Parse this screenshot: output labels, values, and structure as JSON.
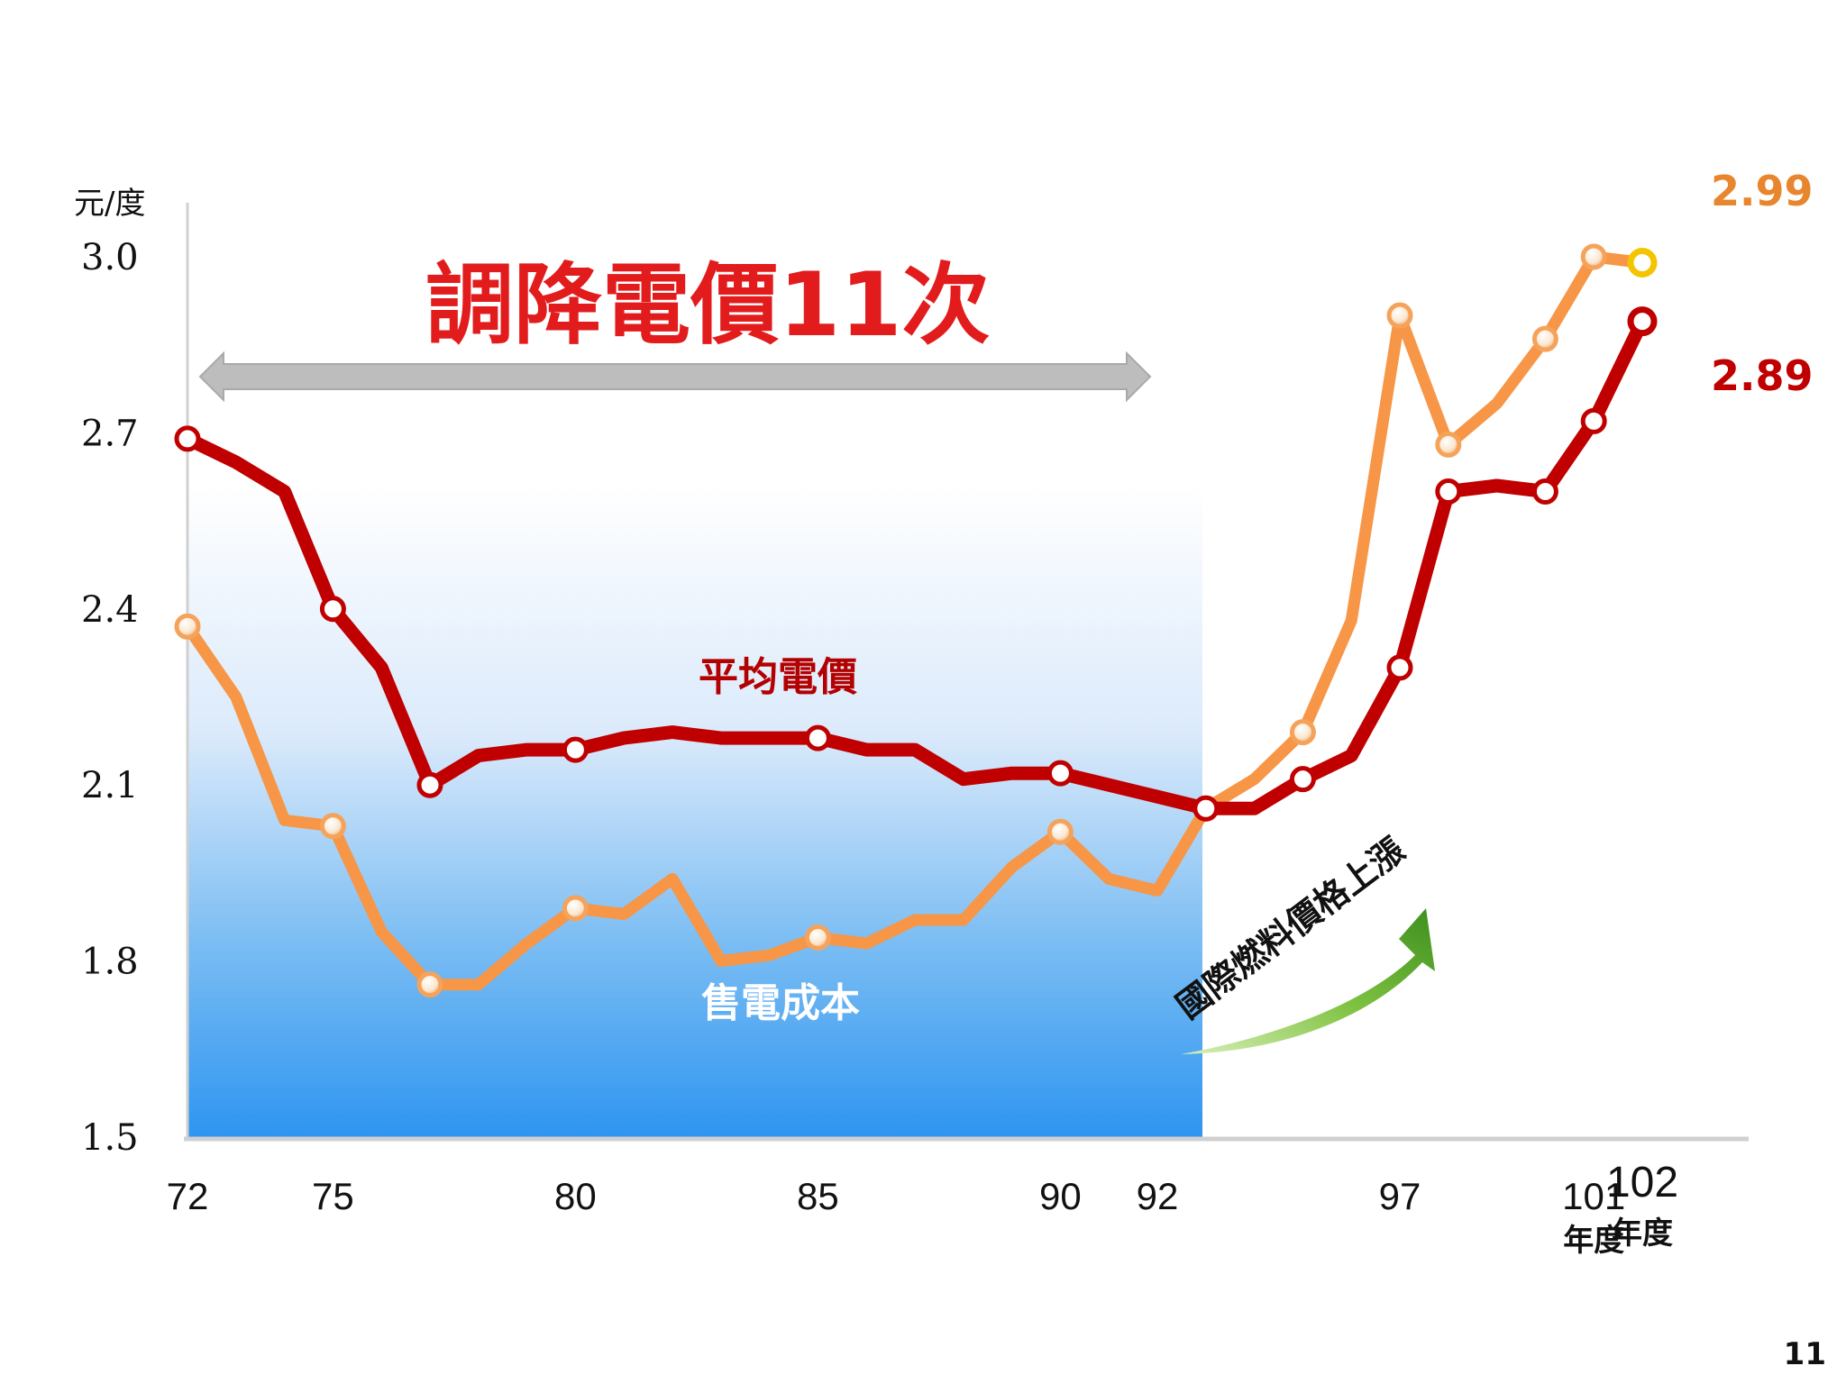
{
  "chart_data": {
    "type": "line",
    "ylabel": "元/度",
    "ylim": [
      1.5,
      3.0
    ],
    "yticks": [
      "3.0",
      "2.7",
      "2.4",
      "2.1",
      "1.8",
      "1.5"
    ],
    "ytick_values": [
      3.0,
      2.7,
      2.4,
      2.1,
      1.8,
      1.5
    ],
    "xlim": [
      72,
      102.5
    ],
    "xticks": [
      {
        "value": 72,
        "label": "72"
      },
      {
        "value": 75,
        "label": "75"
      },
      {
        "value": 80,
        "label": "80"
      },
      {
        "value": 85,
        "label": "85"
      },
      {
        "value": 90,
        "label": "90"
      },
      {
        "value": 92,
        "label": "92"
      },
      {
        "value": 97,
        "label": "97"
      },
      {
        "value": 101,
        "label": "101",
        "sub": "年度"
      },
      {
        "value": 102,
        "label": "102",
        "sub": "年度"
      }
    ],
    "headline": "調降電價11次",
    "highlight_range": [
      72,
      92
    ],
    "annotation": "國際燃料價格上漲",
    "page_number": "11",
    "series": [
      {
        "name": "平均電價",
        "color": "#c00000",
        "end_label": "2.89",
        "points": [
          [
            72,
            2.69
          ],
          [
            73,
            2.65
          ],
          [
            74,
            2.6
          ],
          [
            75,
            2.4
          ],
          [
            76,
            2.3
          ],
          [
            77,
            2.1
          ],
          [
            78,
            2.15
          ],
          [
            79,
            2.16
          ],
          [
            80,
            2.16
          ],
          [
            81,
            2.18
          ],
          [
            82,
            2.19
          ],
          [
            83,
            2.18
          ],
          [
            84,
            2.18
          ],
          [
            85,
            2.18
          ],
          [
            86,
            2.16
          ],
          [
            87,
            2.16
          ],
          [
            88,
            2.11
          ],
          [
            89,
            2.12
          ],
          [
            90,
            2.12
          ],
          [
            91,
            2.1
          ],
          [
            92,
            2.08
          ],
          [
            93,
            2.06
          ],
          [
            94,
            2.06
          ],
          [
            95,
            2.11
          ],
          [
            96,
            2.15
          ],
          [
            97,
            2.3
          ],
          [
            98,
            2.6
          ],
          [
            99,
            2.61
          ],
          [
            100,
            2.6
          ],
          [
            101,
            2.72
          ],
          [
            102,
            2.89
          ]
        ],
        "markers": [
          72,
          75,
          77,
          80,
          85,
          90,
          93,
          95,
          97,
          98,
          100,
          101,
          102
        ]
      },
      {
        "name": "售電成本",
        "color": "#f79646",
        "end_label": "2.99",
        "points": [
          [
            72,
            2.37
          ],
          [
            73,
            2.25
          ],
          [
            74,
            2.04
          ],
          [
            75,
            2.03
          ],
          [
            76,
            1.85
          ],
          [
            77,
            1.76
          ],
          [
            78,
            1.76
          ],
          [
            79,
            1.83
          ],
          [
            80,
            1.89
          ],
          [
            81,
            1.88
          ],
          [
            82,
            1.94
          ],
          [
            83,
            1.8
          ],
          [
            84,
            1.81
          ],
          [
            85,
            1.84
          ],
          [
            86,
            1.83
          ],
          [
            87,
            1.87
          ],
          [
            88,
            1.87
          ],
          [
            89,
            1.96
          ],
          [
            90,
            2.02
          ],
          [
            91,
            1.94
          ],
          [
            92,
            1.92
          ],
          [
            93,
            2.06
          ],
          [
            94,
            2.11
          ],
          [
            95,
            2.19
          ],
          [
            96,
            2.38
          ],
          [
            97,
            2.9
          ],
          [
            98,
            2.68
          ],
          [
            99,
            2.75
          ],
          [
            100,
            2.86
          ],
          [
            101,
            3.0
          ],
          [
            102,
            2.99
          ]
        ],
        "markers": [
          72,
          75,
          77,
          80,
          85,
          90,
          93,
          95,
          97,
          98,
          100,
          101,
          102
        ]
      }
    ]
  }
}
